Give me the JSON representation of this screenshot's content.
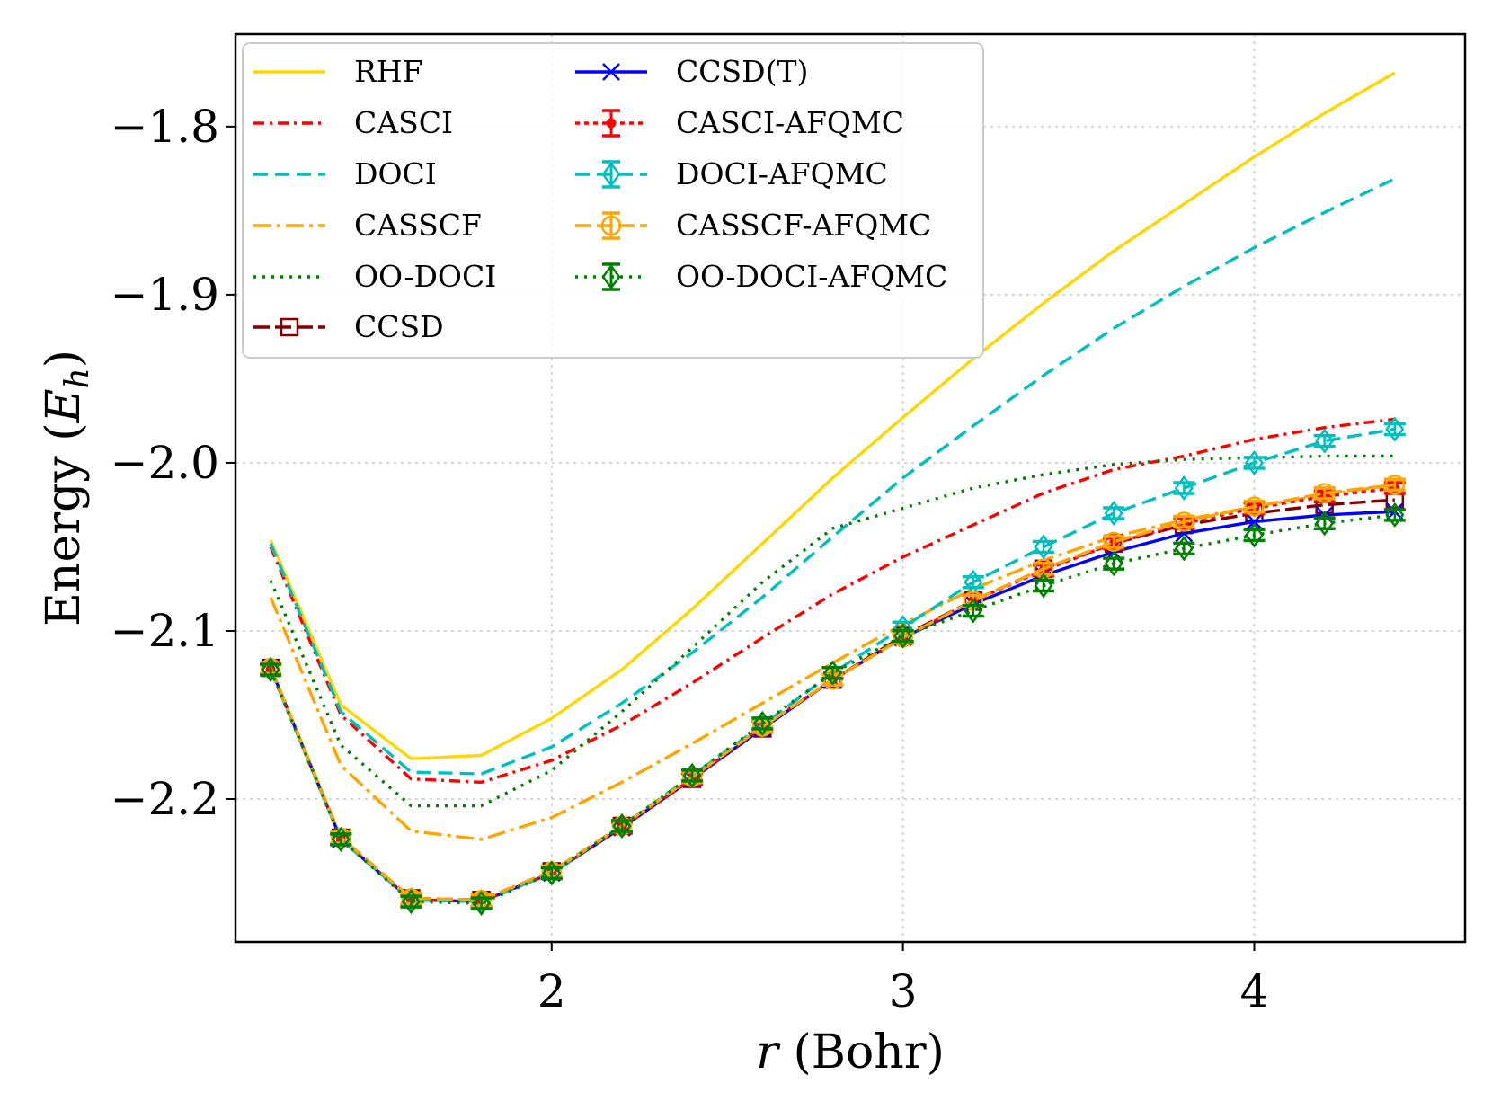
{
  "chart_data": {
    "type": "line",
    "title": "",
    "xlabel_var": "r",
    "xlabel_unit": "(Bohr)",
    "ylabel_text": "Energy (",
    "ylabel_var": "E",
    "ylabel_sub": "h",
    "ylabel_close": ")",
    "xlim": [
      1.1,
      4.6
    ],
    "ylim": [
      -2.285,
      -1.745
    ],
    "xticks": [
      2,
      3,
      4
    ],
    "xtick_labels": [
      "2",
      "3",
      "4"
    ],
    "yticks": [
      -1.8,
      -1.9,
      -2.0,
      -2.1,
      -2.2
    ],
    "ytick_labels": [
      "−1.8",
      "−1.9",
      "−2.0",
      "−2.1",
      "−2.2"
    ],
    "grid": true,
    "legend_position": "top-left",
    "x": [
      1.2,
      1.4,
      1.6,
      1.8,
      2.0,
      2.2,
      2.4,
      2.6,
      2.8,
      3.0,
      3.2,
      3.4,
      3.6,
      3.8,
      4.0,
      4.2,
      4.4
    ],
    "series": [
      {
        "name": "RHF",
        "color": "#FFD700",
        "dash": "",
        "marker": "none",
        "values": [
          -2.046,
          -2.144,
          -2.176,
          -2.174,
          -2.152,
          -2.123,
          -2.087,
          -2.048,
          -2.009,
          -1.973,
          -1.938,
          -1.905,
          -1.874,
          -1.846,
          -1.818,
          -1.792,
          -1.768
        ]
      },
      {
        "name": "CASCI",
        "color": "#FF0000",
        "dash": "12,6,3,6",
        "marker": "none",
        "values": [
          -2.05,
          -2.15,
          -2.188,
          -2.19,
          -2.177,
          -2.156,
          -2.131,
          -2.104,
          -2.078,
          -2.056,
          -2.037,
          -2.018,
          -2.004,
          -1.996,
          -1.986,
          -1.979,
          -1.974
        ]
      },
      {
        "name": "DOCI",
        "color": "#00BFBF",
        "dash": "16,8",
        "marker": "none",
        "values": [
          -2.048,
          -2.148,
          -2.184,
          -2.185,
          -2.169,
          -2.143,
          -2.113,
          -2.08,
          -2.044,
          -2.009,
          -1.978,
          -1.948,
          -1.92,
          -1.895,
          -1.872,
          -1.851,
          -1.831
        ]
      },
      {
        "name": "CASSCF",
        "color": "#FFA500",
        "dash": "20,6,4,6",
        "marker": "none",
        "values": [
          -2.08,
          -2.18,
          -2.219,
          -2.224,
          -2.211,
          -2.19,
          -2.167,
          -2.143,
          -2.119,
          -2.096,
          -2.075,
          -2.058,
          -2.044,
          -2.034,
          -2.026,
          -2.019,
          -2.013
        ]
      },
      {
        "name": "OO-DOCI",
        "color": "#008000",
        "dash": "3,7",
        "marker": "none",
        "values": [
          -2.07,
          -2.168,
          -2.204,
          -2.204,
          -2.183,
          -2.148,
          -2.11,
          -2.071,
          -2.039,
          -2.027,
          -2.015,
          -2.007,
          -2.001,
          -1.998,
          -1.997,
          -1.996,
          -1.996
        ]
      },
      {
        "name": "CCSD",
        "color": "#800000",
        "dash": "18,6",
        "marker": "square",
        "values": [
          -2.122,
          -2.223,
          -2.259,
          -2.26,
          -2.243,
          -2.216,
          -2.188,
          -2.158,
          -2.129,
          -2.103,
          -2.082,
          -2.063,
          -2.048,
          -2.037,
          -2.03,
          -2.025,
          -2.022
        ]
      },
      {
        "name": "CCSD(T)",
        "color": "#0000FF",
        "dash": "",
        "marker": "x",
        "values": [
          -2.122,
          -2.224,
          -2.26,
          -2.261,
          -2.244,
          -2.217,
          -2.188,
          -2.158,
          -2.129,
          -2.104,
          -2.084,
          -2.067,
          -2.053,
          -2.042,
          -2.035,
          -2.031,
          -2.029
        ]
      },
      {
        "name": "CASCI-AFQMC",
        "color": "#FF0000",
        "dash": "5,5",
        "marker": "dot",
        "values": [
          -2.123,
          -2.224,
          -2.26,
          -2.261,
          -2.244,
          -2.217,
          -2.188,
          -2.157,
          -2.129,
          -2.104,
          -2.082,
          -2.064,
          -2.048,
          -2.036,
          -2.027,
          -2.02,
          -2.015
        ]
      },
      {
        "name": "DOCI-AFQMC",
        "color": "#00BFBF",
        "dash": "16,8",
        "marker": "diamond",
        "values": [
          -2.123,
          -2.224,
          -2.26,
          -2.261,
          -2.244,
          -2.216,
          -2.186,
          -2.156,
          -2.125,
          -2.098,
          -2.071,
          -2.05,
          -2.03,
          -2.015,
          -2.0,
          -1.987,
          -1.98
        ]
      },
      {
        "name": "CASSCF-AFQMC",
        "color": "#FFA500",
        "dash": "18,6",
        "marker": "circle",
        "values": [
          -2.122,
          -2.223,
          -2.259,
          -2.26,
          -2.243,
          -2.216,
          -2.187,
          -2.157,
          -2.129,
          -2.104,
          -2.082,
          -2.063,
          -2.047,
          -2.035,
          -2.026,
          -2.018,
          -2.013
        ]
      },
      {
        "name": "OO-DOCI-AFQMC",
        "color": "#008000",
        "dash": "3,7",
        "marker": "diamond",
        "values": [
          -2.123,
          -2.224,
          -2.261,
          -2.262,
          -2.244,
          -2.216,
          -2.186,
          -2.155,
          -2.125,
          -2.103,
          -2.088,
          -2.073,
          -2.06,
          -2.051,
          -2.043,
          -2.036,
          -2.031
        ]
      }
    ]
  }
}
